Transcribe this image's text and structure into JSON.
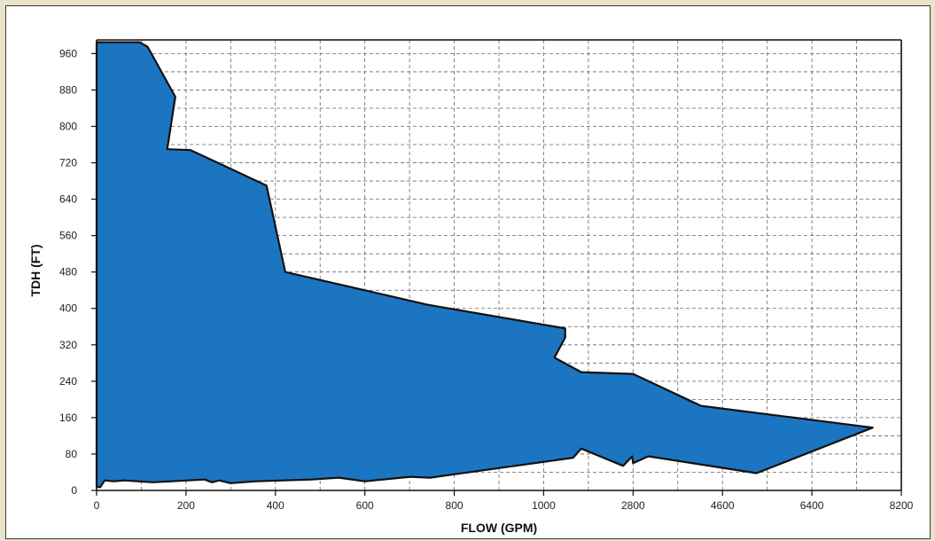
{
  "chart_data": {
    "type": "area",
    "xlabel": "FLOW (GPM)",
    "ylabel": "TDH (FT)",
    "x_ticks": [
      "0",
      "200",
      "400",
      "600",
      "800",
      "1000",
      "2800",
      "4600",
      "6400",
      "8200"
    ],
    "y_ticks": [
      0,
      80,
      160,
      240,
      320,
      400,
      480,
      560,
      640,
      720,
      800,
      880,
      960
    ],
    "ylim": [
      0,
      990
    ],
    "grid": true,
    "grid_style": "dashed",
    "colors": {
      "fill": "#1c75c1",
      "outline": "#111111"
    },
    "note": "The x-axis spacing is non-linear: 0–1000 in steps of 200, then 1000–8200 in steps of 1800. Each point below is [flow position in tick index, TDH].",
    "envelope": [
      [
        0.0,
        985
      ],
      [
        0.48,
        985
      ],
      [
        0.57,
        975
      ],
      [
        0.88,
        865
      ],
      [
        0.79,
        750
      ],
      [
        1.05,
        748
      ],
      [
        1.9,
        670
      ],
      [
        2.11,
        480
      ],
      [
        3.7,
        408
      ],
      [
        5.24,
        356
      ],
      [
        5.24,
        336
      ],
      [
        5.12,
        292
      ],
      [
        5.42,
        260
      ],
      [
        6.0,
        256
      ],
      [
        6.76,
        186
      ],
      [
        8.68,
        138
      ],
      [
        7.38,
        38
      ],
      [
        6.17,
        75
      ],
      [
        6.0,
        60
      ],
      [
        5.99,
        75
      ],
      [
        5.89,
        54
      ],
      [
        5.42,
        92
      ],
      [
        5.33,
        72
      ],
      [
        3.73,
        28
      ],
      [
        3.51,
        30
      ],
      [
        3.0,
        20
      ],
      [
        2.71,
        28
      ],
      [
        2.4,
        24
      ],
      [
        1.78,
        20
      ],
      [
        1.5,
        16
      ],
      [
        1.37,
        22
      ],
      [
        1.29,
        18
      ],
      [
        1.21,
        24
      ],
      [
        1.02,
        22
      ],
      [
        0.63,
        18
      ],
      [
        0.31,
        22
      ],
      [
        0.2,
        20
      ],
      [
        0.09,
        22
      ],
      [
        0.04,
        7
      ],
      [
        0.0,
        9
      ]
    ]
  }
}
